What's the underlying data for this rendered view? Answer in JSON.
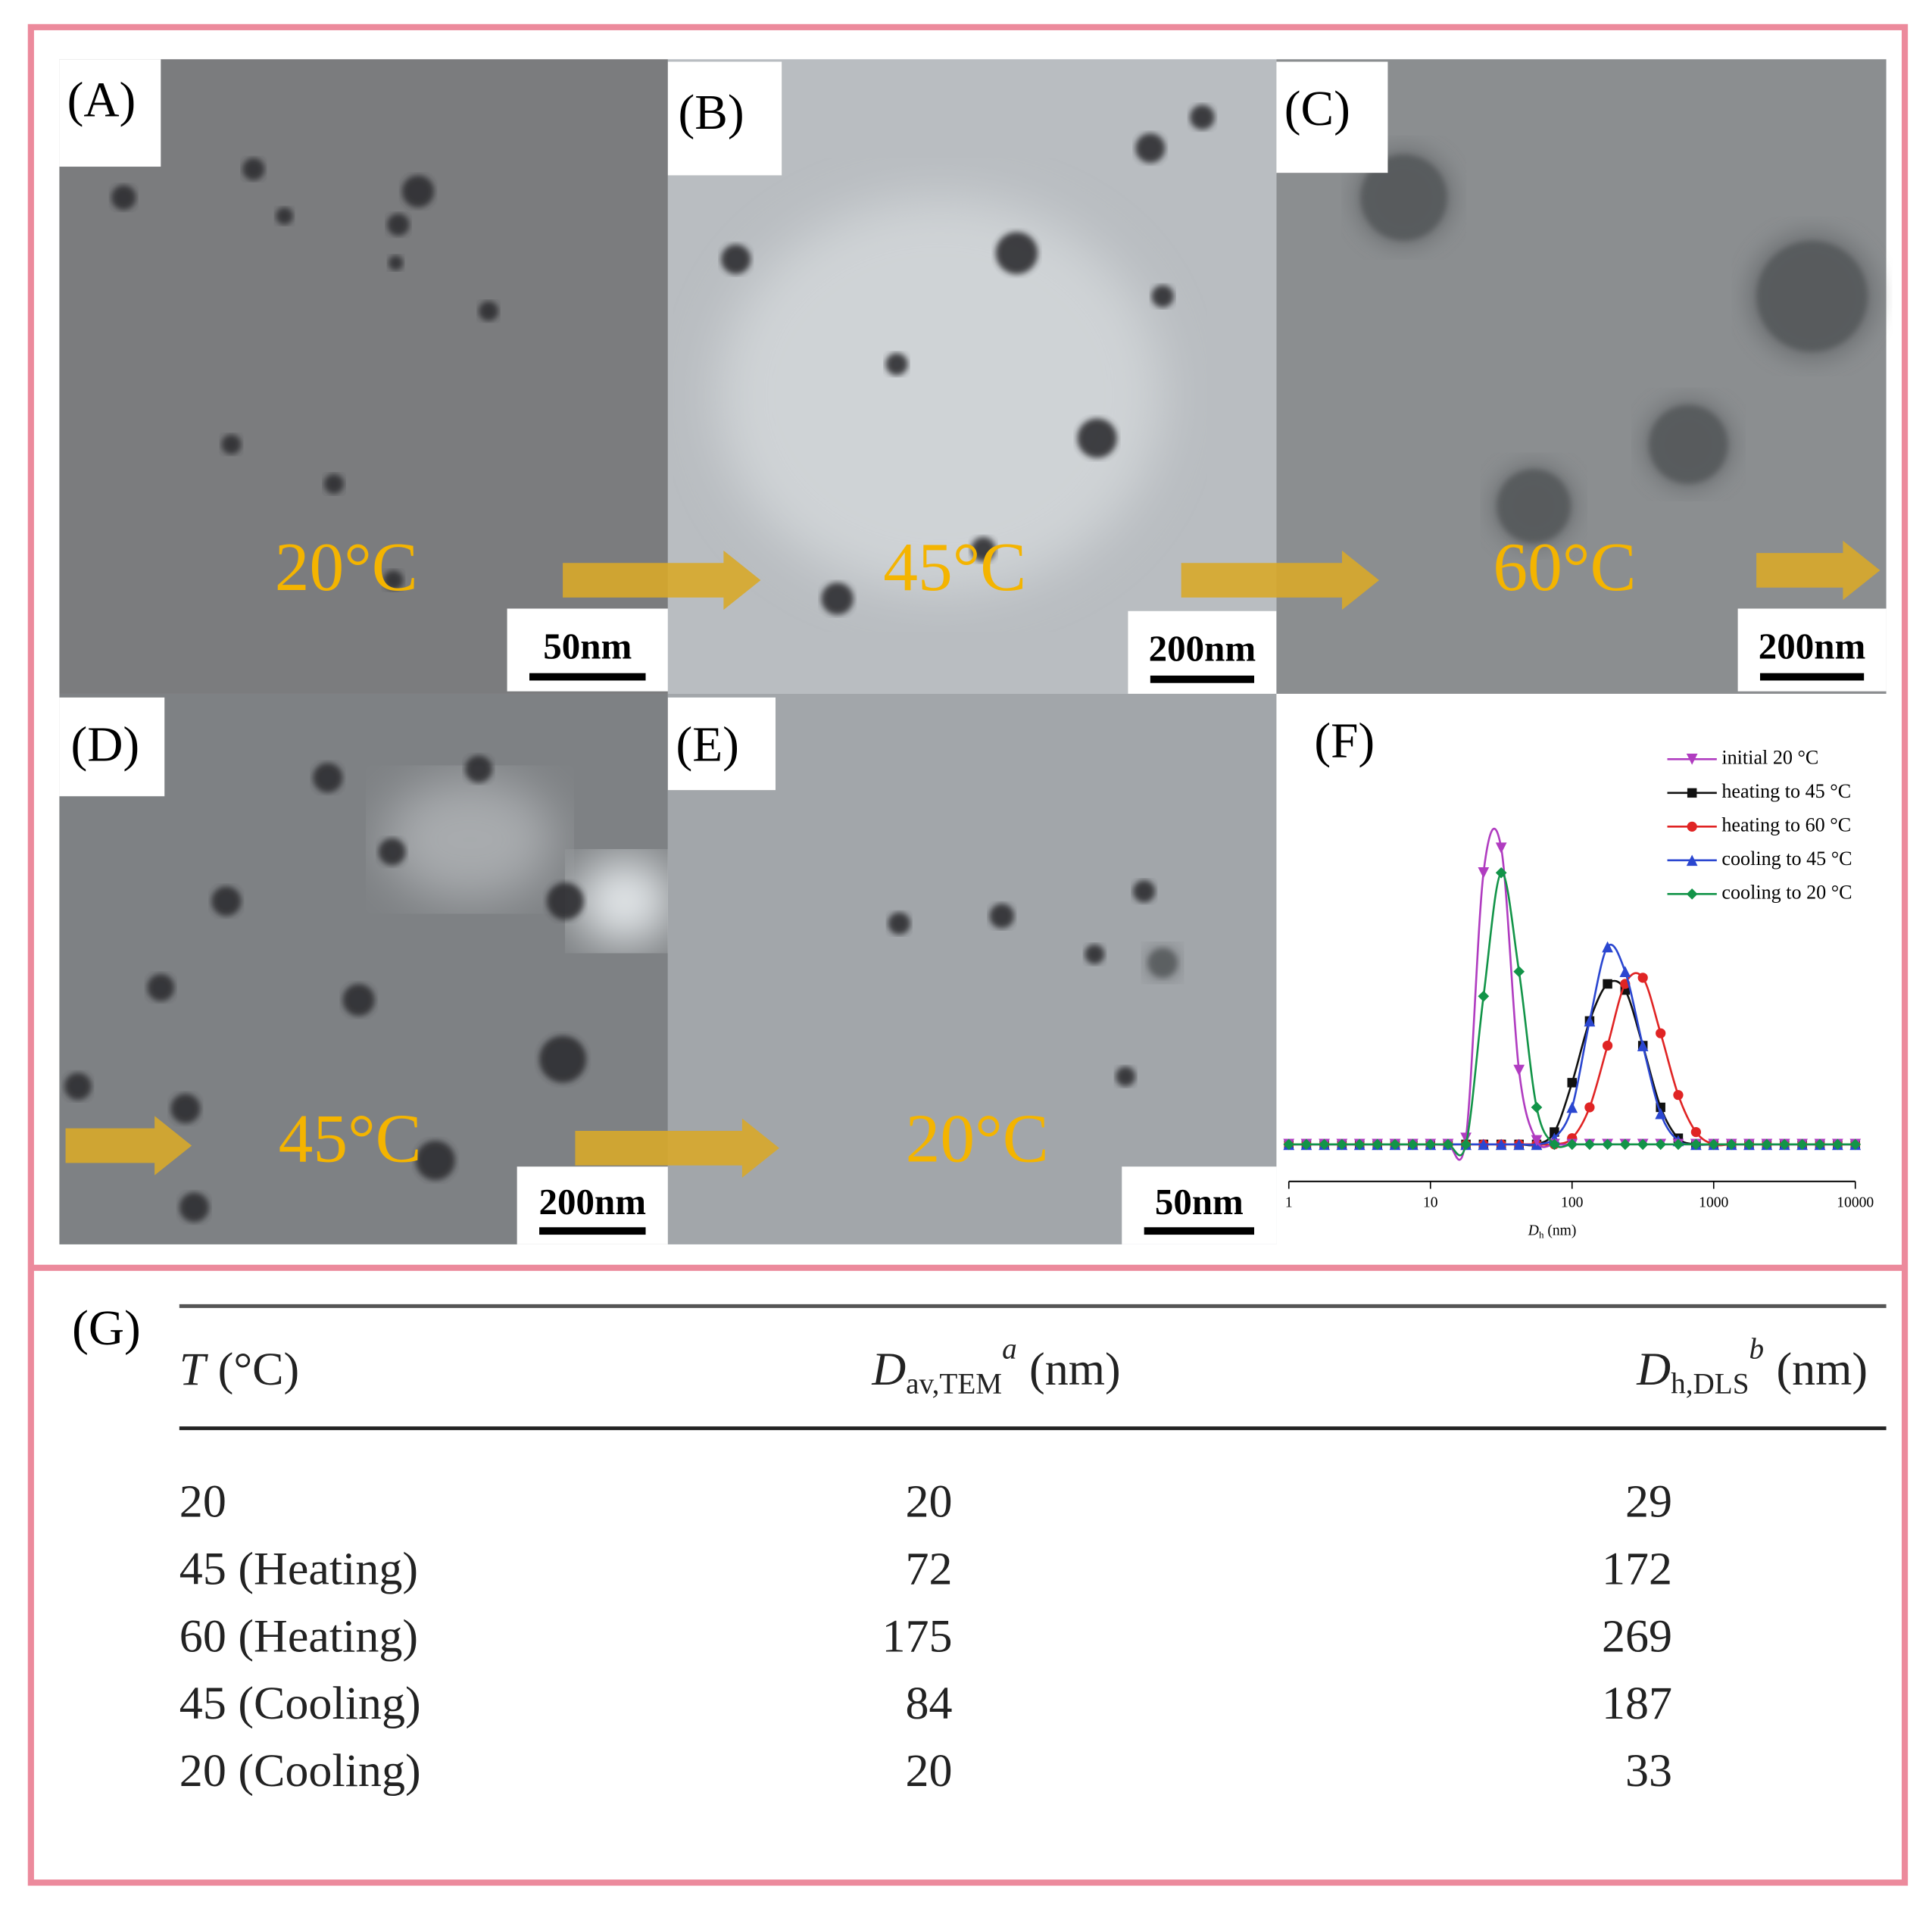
{
  "panels": [
    {
      "label": "(A)",
      "temperature": "20°C",
      "scale_bar": "50nm"
    },
    {
      "label": "(B)",
      "temperature": "45°C",
      "scale_bar": "200nm"
    },
    {
      "label": "(C)",
      "temperature": "60°C",
      "scale_bar": "200nm"
    },
    {
      "label": "(D)",
      "temperature": "45°C",
      "scale_bar": "200nm"
    },
    {
      "label": "(E)",
      "temperature": "20°C",
      "scale_bar": "50nm"
    }
  ],
  "chart_data": {
    "type": "line",
    "panel_label": "(F)",
    "x_label": {
      "symbol": "D",
      "subscript": "h",
      "unit": "(nm)"
    },
    "log_x": true,
    "legend": "upper right",
    "xlim": [
      1,
      10000
    ],
    "xticks": [
      1,
      10,
      100,
      1000,
      10000
    ],
    "ylim": [
      -3,
      33
    ],
    "x": [
      1,
      1.33,
      1.78,
      2.37,
      3.16,
      4.22,
      5.62,
      7.5,
      10,
      13.3,
      17.8,
      23.7,
      31.6,
      42.2,
      56.2,
      75,
      100,
      133,
      178,
      237,
      316,
      422,
      562,
      750,
      1000,
      1334,
      1778,
      2371,
      3162,
      4217,
      5623,
      7499,
      10000
    ],
    "series": [
      {
        "name": "initial 20 °C",
        "color": "#b03cc0",
        "marker": "triangle-down",
        "values": [
          0,
          0,
          0,
          0,
          0,
          0,
          0,
          0,
          0,
          0,
          0.5,
          22,
          24,
          6,
          0.3,
          0,
          0,
          0,
          0,
          0,
          0,
          0,
          0,
          0,
          0,
          0,
          0,
          0,
          0,
          0,
          0,
          0,
          0
        ]
      },
      {
        "name": "heating to 45 °C",
        "color": "#111111",
        "marker": "square",
        "values": [
          0,
          0,
          0,
          0,
          0,
          0,
          0,
          0,
          0,
          0,
          0,
          0,
          0,
          0,
          0,
          1,
          5,
          10,
          13,
          12.5,
          8,
          3,
          0.5,
          0,
          0,
          0,
          0,
          0,
          0,
          0,
          0,
          0,
          0
        ]
      },
      {
        "name": "heating to 60 °C",
        "color": "#e02424",
        "marker": "circle",
        "values": [
          0,
          0,
          0,
          0,
          0,
          0,
          0,
          0,
          0,
          0,
          0,
          0,
          0,
          0,
          0,
          0,
          0.5,
          3,
          8,
          13,
          13.5,
          9,
          4,
          1,
          0,
          0,
          0,
          0,
          0,
          0,
          0,
          0,
          0
        ]
      },
      {
        "name": "cooling to 45 °C",
        "color": "#2a46d0",
        "marker": "triangle-up",
        "values": [
          0,
          0,
          0,
          0,
          0,
          0,
          0,
          0,
          0,
          0,
          0,
          0,
          0,
          0,
          0,
          0.5,
          3,
          10,
          16,
          14,
          8,
          2.5,
          0.3,
          0,
          0,
          0,
          0,
          0,
          0,
          0,
          0,
          0,
          0
        ]
      },
      {
        "name": "cooling to 20 °C",
        "color": "#129448",
        "marker": "diamond",
        "values": [
          0,
          0,
          0,
          0,
          0,
          0,
          0,
          0,
          0,
          0,
          0,
          12,
          22,
          14,
          3,
          0,
          0,
          0,
          0,
          0,
          0,
          0,
          0,
          0,
          0,
          0,
          0,
          0,
          0,
          0,
          0,
          0,
          0
        ]
      }
    ]
  },
  "table": {
    "label": "(G)",
    "header": [
      {
        "symbol": "T",
        "unit": "(°C)"
      },
      {
        "symbol": "D",
        "subscript": "av,TEM",
        "superscript": "a",
        "unit": "(nm)"
      },
      {
        "symbol": "D",
        "subscript": "h,DLS",
        "superscript": "b",
        "unit": "(nm)"
      }
    ],
    "rows": [
      [
        "20",
        20,
        29
      ],
      [
        "45 (Heating)",
        72,
        172
      ],
      [
        "60 (Heating)",
        175,
        269
      ],
      [
        "45 (Cooling)",
        84,
        187
      ],
      [
        "20 (Cooling)",
        20,
        33
      ]
    ]
  }
}
